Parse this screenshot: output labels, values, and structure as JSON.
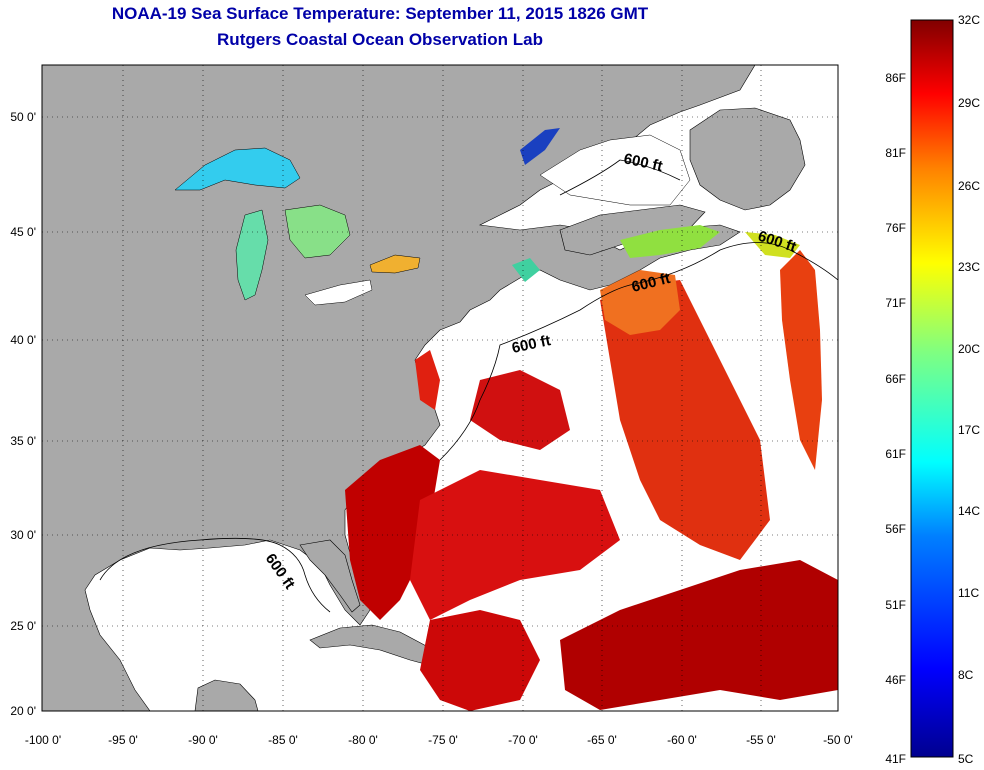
{
  "header": {
    "title": "NOAA-19 Sea Surface Temperature:  September 11, 2015 1826 GMT",
    "subtitle": "Rutgers Coastal Ocean Observation Lab"
  },
  "map": {
    "lat_ticks": [
      "50 0'",
      "45 0'",
      "40 0'",
      "35 0'",
      "30 0'",
      "25 0'",
      "20 0'"
    ],
    "lon_ticks": [
      "-100 0'",
      "-95 0'",
      "-90 0'",
      "-85 0'",
      "-80 0'",
      "-75 0'",
      "-70 0'",
      "-65 0'",
      "-60 0'",
      "-55 0'",
      "-50 0'"
    ],
    "contour_label": "600 ft",
    "colors": {
      "land": "#a9a9a9",
      "ocean_no_data": "#ffffff",
      "coast": "#000000"
    }
  },
  "colorbar": {
    "celsius_labels": [
      "32C",
      "29C",
      "26C",
      "23C",
      "20C",
      "17C",
      "14C",
      "11C",
      "8C",
      "5C"
    ],
    "fahrenheit_labels": [
      "86F",
      "81F",
      "76F",
      "71F",
      "66F",
      "61F",
      "56F",
      "51F",
      "46F",
      "41F"
    ],
    "stops": [
      "#00008f",
      "#0000ff",
      "#0080ff",
      "#00ffff",
      "#80ff80",
      "#ffff00",
      "#ff8000",
      "#ff0000",
      "#800000"
    ]
  }
}
